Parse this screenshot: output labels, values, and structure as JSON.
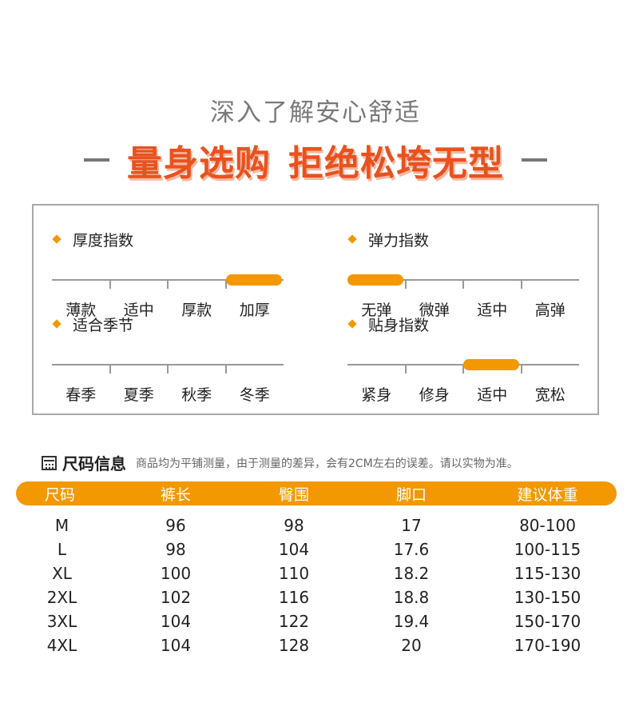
{
  "header": {
    "subtitle": "深入了解安心舒适",
    "headline_part1": "量身选购",
    "headline_part2": "拒绝松垮无型"
  },
  "indices": [
    {
      "label": "厚度指数",
      "options": [
        "薄款",
        "适中",
        "厚款",
        "加厚"
      ],
      "selected": 3
    },
    {
      "label": "弹力指数",
      "options": [
        "无弹",
        "微弹",
        "适中",
        "高弹"
      ],
      "selected": 0
    },
    {
      "label": "适合季节",
      "options": [
        "春季",
        "夏季",
        "秋季",
        "冬季"
      ],
      "selected": null
    },
    {
      "label": "贴身指数",
      "options": [
        "紧身",
        "修身",
        "适中",
        "宽松"
      ],
      "selected": 2
    }
  ],
  "size_info": {
    "title": "尺码信息",
    "note": "商品均为平铺测量，由于测量的差异，会有2CM左右的误差。请以实物为准。",
    "columns": [
      "尺码",
      "裤长",
      "臀围",
      "脚口",
      "建议体重"
    ],
    "rows": [
      [
        "M",
        "96",
        "98",
        "17",
        "80-100"
      ],
      [
        "L",
        "98",
        "104",
        "17.6",
        "100-115"
      ],
      [
        "XL",
        "100",
        "110",
        "18.2",
        "115-130"
      ],
      [
        "2XL",
        "102",
        "116",
        "18.8",
        "130-150"
      ],
      [
        "3XL",
        "104",
        "122",
        "19.4",
        "150-170"
      ],
      [
        "4XL",
        "104",
        "128",
        "20",
        "170-190"
      ]
    ]
  },
  "colors": {
    "accent": "#f39800",
    "headline": "#e8521f",
    "border": "#a8a8a8"
  }
}
